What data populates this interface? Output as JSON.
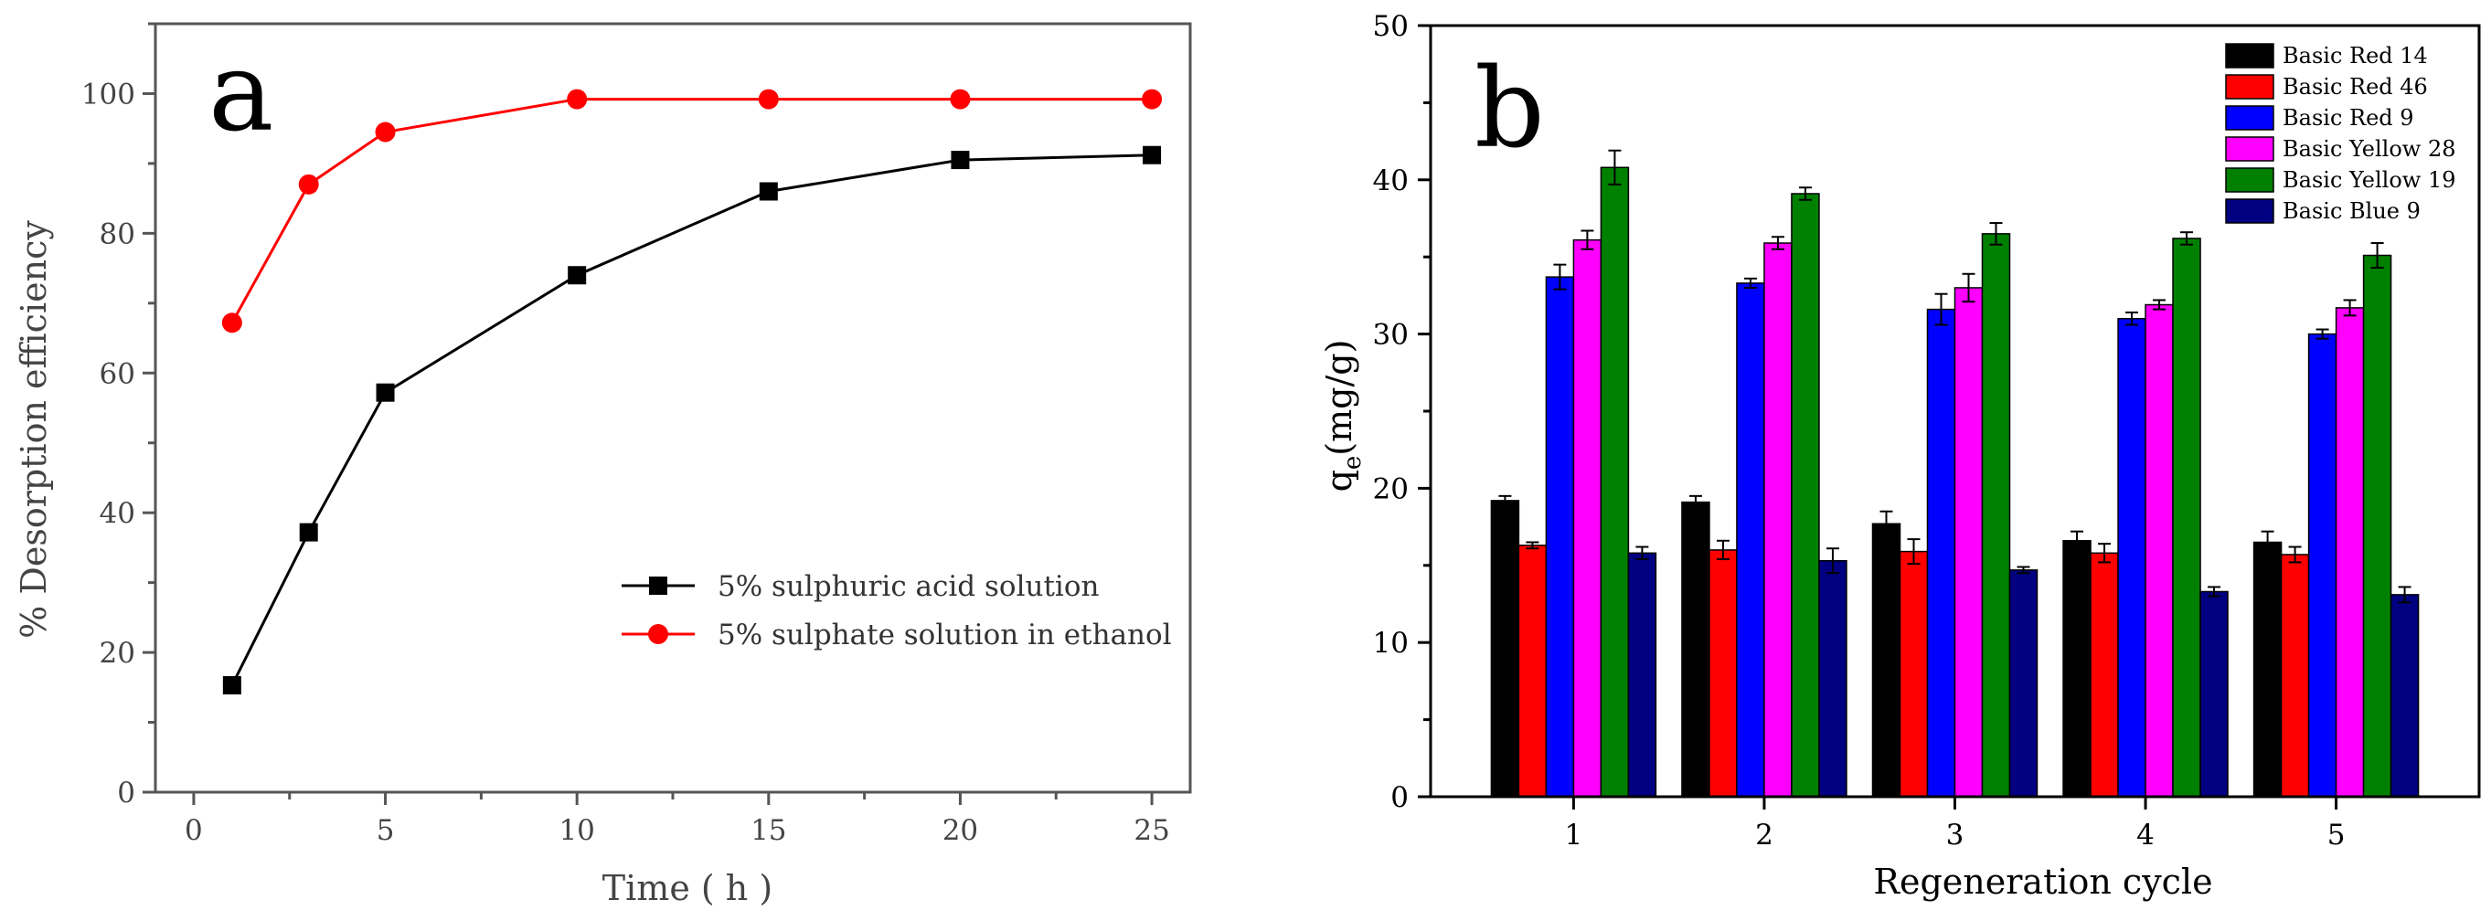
{
  "colors": {
    "series_a1": "#000000",
    "series_a2": "#ff0000",
    "axis_a": "#555555"
  },
  "chart_data": [
    {
      "type": "line",
      "panel_label": "a",
      "title": "",
      "xlabel": "Time ( h )",
      "ylabel": "% Desorption efficiency",
      "xlim": [
        0,
        26
      ],
      "ylim": [
        0,
        110
      ],
      "xticks": [
        0,
        5,
        10,
        15,
        20,
        25
      ],
      "yticks": [
        0,
        20,
        40,
        60,
        80,
        100
      ],
      "x": [
        1,
        3,
        5,
        10,
        15,
        20,
        25
      ],
      "series": [
        {
          "name": "5% sulphuric acid solution",
          "color": "#000000",
          "marker": "square",
          "values": [
            15.3,
            37.2,
            57.2,
            74.0,
            86.0,
            90.5,
            91.2
          ]
        },
        {
          "name": "5% sulphate solution in ethanol",
          "color": "#ff0000",
          "marker": "circle",
          "values": [
            67.2,
            87.0,
            94.5,
            99.2,
            99.2,
            99.2,
            99.2
          ]
        }
      ],
      "legend_position": "bottom-right"
    },
    {
      "type": "bar",
      "panel_label": "b",
      "title": "",
      "xlabel": "Regeneration cycle",
      "ylabel_main": "q",
      "ylabel_sub": "e",
      "ylabel_rest": "(mg/g)",
      "ylim": [
        0,
        50
      ],
      "yticks": [
        0,
        10,
        20,
        30,
        40,
        50
      ],
      "categories": [
        "1",
        "2",
        "3",
        "4",
        "5"
      ],
      "series": [
        {
          "name": "Basic Red 14",
          "color": "#000000",
          "values": [
            19.2,
            19.1,
            17.7,
            16.6,
            16.5
          ],
          "errors": [
            0.3,
            0.4,
            0.8,
            0.6,
            0.7
          ]
        },
        {
          "name": "Basic Red 46",
          "color": "#ff0000",
          "values": [
            16.3,
            16.0,
            15.9,
            15.8,
            15.7
          ],
          "errors": [
            0.2,
            0.6,
            0.8,
            0.6,
            0.5
          ]
        },
        {
          "name": "Basic Red 9",
          "color": "#0000ff",
          "values": [
            33.7,
            33.3,
            31.6,
            31.0,
            30.0
          ],
          "errors": [
            0.8,
            0.3,
            1.0,
            0.4,
            0.3
          ]
        },
        {
          "name": "Basic Yellow 28",
          "color": "#ff00ff",
          "values": [
            36.1,
            35.9,
            33.0,
            31.9,
            31.7
          ],
          "errors": [
            0.6,
            0.4,
            0.9,
            0.3,
            0.5
          ]
        },
        {
          "name": "Basic Yellow 19",
          "color": "#008000",
          "values": [
            40.8,
            39.1,
            36.5,
            36.2,
            35.1
          ],
          "errors": [
            1.1,
            0.4,
            0.7,
            0.4,
            0.8
          ]
        },
        {
          "name": "Basic Blue 9",
          "color": "#000080",
          "values": [
            15.8,
            15.3,
            14.7,
            13.3,
            13.1
          ],
          "errors": [
            0.4,
            0.8,
            0.2,
            0.3,
            0.5
          ]
        }
      ],
      "legend_position": "top-right"
    }
  ]
}
